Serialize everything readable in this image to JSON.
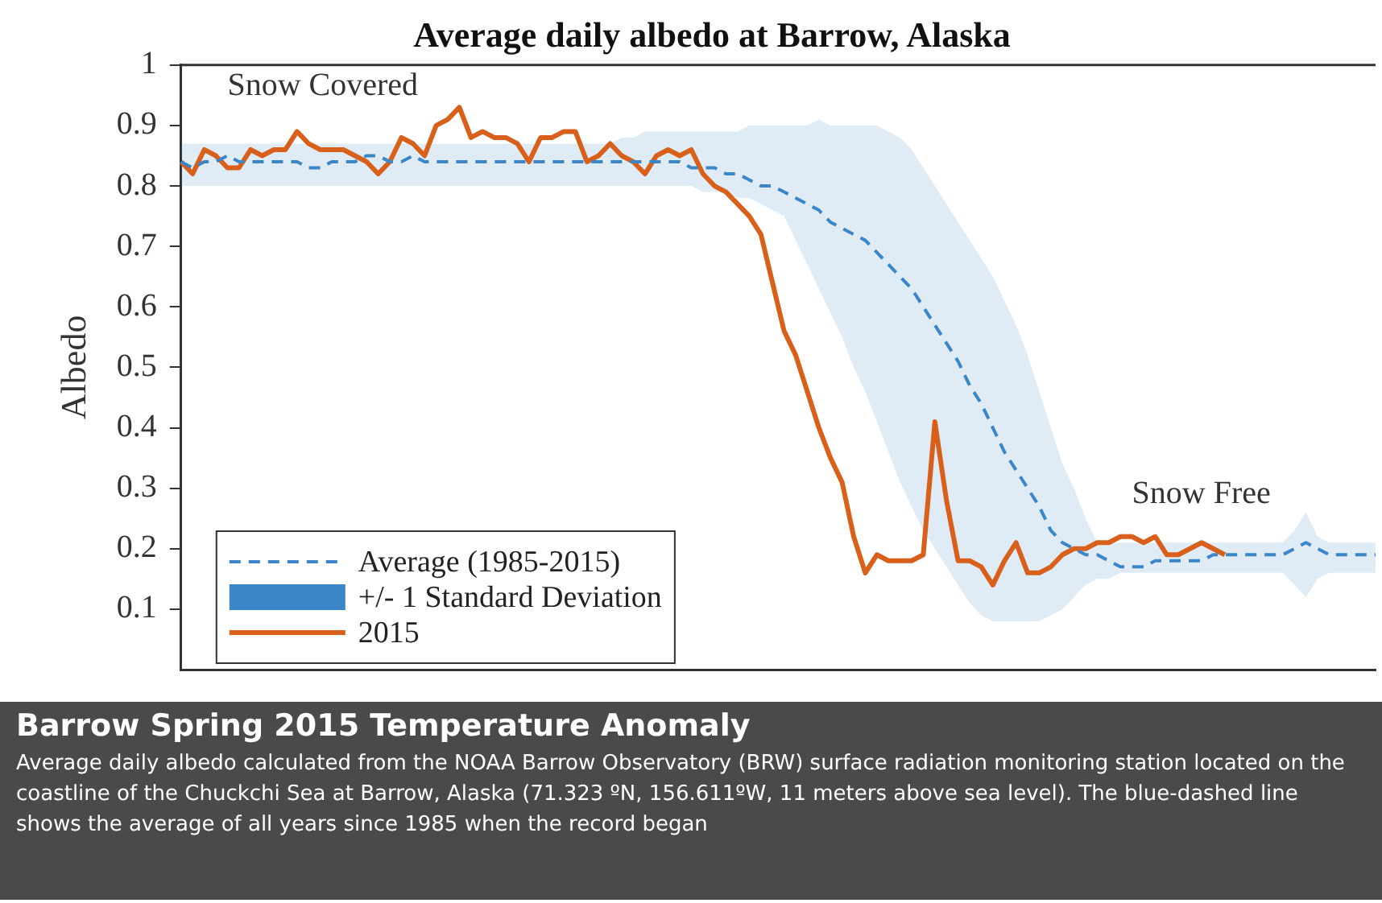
{
  "chart_data": {
    "type": "line",
    "title": "Average daily albedo at Barrow, Alaska",
    "ylabel": "Albedo",
    "categories": [
      null,
      null,
      null,
      null,
      null,
      null,
      null,
      null,
      null,
      null,
      null,
      null,
      null,
      null,
      null,
      null,
      null,
      null,
      null,
      null,
      null,
      null,
      null,
      null,
      null,
      null,
      null,
      null,
      null,
      null,
      null,
      null,
      null,
      null,
      null,
      null,
      null,
      null,
      null,
      null,
      null,
      null,
      null,
      null,
      null,
      null,
      null,
      null,
      null,
      null,
      null,
      null,
      null,
      null,
      null,
      null,
      null,
      null,
      null,
      null,
      null,
      null,
      null,
      null,
      null,
      null,
      null,
      null,
      null,
      null,
      null,
      null,
      null,
      null,
      null,
      null,
      null,
      null,
      null,
      null,
      null,
      null,
      null,
      null,
      null,
      null,
      null,
      null,
      null,
      null,
      null,
      null,
      null,
      null,
      null,
      null,
      null,
      null,
      null,
      null,
      null,
      null,
      null,
      null
    ],
    "series": [
      {
        "name": "Average (1985-2015)",
        "color": "#3a86c8",
        "line_style": "dashed",
        "values": [
          0.84,
          0.83,
          0.84,
          0.84,
          0.85,
          0.84,
          0.84,
          0.84,
          0.84,
          0.84,
          0.84,
          0.83,
          0.83,
          0.84,
          0.84,
          0.84,
          0.85,
          0.85,
          0.84,
          0.84,
          0.85,
          0.84,
          0.84,
          0.84,
          0.84,
          0.84,
          0.84,
          0.84,
          0.84,
          0.84,
          0.84,
          0.84,
          0.84,
          0.84,
          0.84,
          0.84,
          0.84,
          0.84,
          0.84,
          0.84,
          0.84,
          0.84,
          0.84,
          0.84,
          0.83,
          0.83,
          0.83,
          0.82,
          0.82,
          0.81,
          0.8,
          0.8,
          0.79,
          0.78,
          0.77,
          0.76,
          0.74,
          0.73,
          0.72,
          0.71,
          0.69,
          0.67,
          0.65,
          0.63,
          0.6,
          0.57,
          0.54,
          0.51,
          0.47,
          0.44,
          0.4,
          0.36,
          0.33,
          0.3,
          0.27,
          0.23,
          0.21,
          0.2,
          0.19,
          0.19,
          0.18,
          0.17,
          0.17,
          0.17,
          0.18,
          0.18,
          0.18,
          0.18,
          0.18,
          0.19,
          0.19,
          0.19,
          0.19,
          0.19,
          0.19,
          0.19,
          0.2,
          0.21,
          0.2,
          0.19,
          0.19,
          0.19,
          0.19,
          0.19
        ],
        "lower": [
          0.8,
          0.8,
          0.8,
          0.8,
          0.8,
          0.8,
          0.8,
          0.8,
          0.8,
          0.8,
          0.8,
          0.8,
          0.8,
          0.8,
          0.8,
          0.8,
          0.8,
          0.8,
          0.8,
          0.8,
          0.8,
          0.8,
          0.8,
          0.8,
          0.8,
          0.8,
          0.8,
          0.8,
          0.8,
          0.8,
          0.8,
          0.8,
          0.8,
          0.8,
          0.8,
          0.8,
          0.8,
          0.8,
          0.8,
          0.8,
          0.8,
          0.8,
          0.8,
          0.8,
          0.8,
          0.79,
          0.79,
          0.79,
          0.78,
          0.78,
          0.77,
          0.76,
          0.75,
          0.71,
          0.67,
          0.63,
          0.59,
          0.55,
          0.5,
          0.46,
          0.41,
          0.36,
          0.31,
          0.27,
          0.23,
          0.2,
          0.17,
          0.14,
          0.11,
          0.09,
          0.08,
          0.08,
          0.08,
          0.08,
          0.08,
          0.09,
          0.1,
          0.12,
          0.14,
          0.15,
          0.15,
          0.16,
          0.16,
          0.16,
          0.16,
          0.16,
          0.16,
          0.16,
          0.16,
          0.16,
          0.16,
          0.16,
          0.16,
          0.16,
          0.16,
          0.16,
          0.14,
          0.12,
          0.15,
          0.16,
          0.16,
          0.16,
          0.16,
          0.16
        ],
        "upper": [
          0.87,
          0.87,
          0.87,
          0.87,
          0.87,
          0.87,
          0.87,
          0.87,
          0.87,
          0.87,
          0.87,
          0.87,
          0.87,
          0.87,
          0.87,
          0.87,
          0.87,
          0.87,
          0.87,
          0.87,
          0.87,
          0.87,
          0.87,
          0.87,
          0.87,
          0.87,
          0.87,
          0.87,
          0.87,
          0.87,
          0.87,
          0.87,
          0.87,
          0.87,
          0.87,
          0.87,
          0.87,
          0.87,
          0.88,
          0.88,
          0.89,
          0.89,
          0.89,
          0.89,
          0.89,
          0.89,
          0.89,
          0.89,
          0.89,
          0.9,
          0.9,
          0.9,
          0.9,
          0.9,
          0.9,
          0.91,
          0.9,
          0.9,
          0.9,
          0.9,
          0.9,
          0.89,
          0.88,
          0.86,
          0.83,
          0.8,
          0.77,
          0.74,
          0.71,
          0.68,
          0.65,
          0.61,
          0.57,
          0.52,
          0.46,
          0.4,
          0.34,
          0.3,
          0.25,
          0.21,
          0.21,
          0.21,
          0.21,
          0.21,
          0.21,
          0.21,
          0.21,
          0.21,
          0.21,
          0.21,
          0.21,
          0.21,
          0.21,
          0.21,
          0.21,
          0.21,
          0.23,
          0.26,
          0.22,
          0.21,
          0.21,
          0.21,
          0.21,
          0.21
        ]
      },
      {
        "name": "2015",
        "color": "#d9601a",
        "values": [
          0.84,
          0.82,
          0.86,
          0.85,
          0.83,
          0.83,
          0.86,
          0.85,
          0.86,
          0.86,
          0.89,
          0.87,
          0.86,
          0.86,
          0.86,
          0.85,
          0.84,
          0.82,
          0.84,
          0.88,
          0.87,
          0.85,
          0.9,
          0.91,
          0.93,
          0.88,
          0.89,
          0.88,
          0.88,
          0.87,
          0.84,
          0.88,
          0.88,
          0.89,
          0.89,
          0.84,
          0.85,
          0.87,
          0.85,
          0.84,
          0.82,
          0.85,
          0.86,
          0.85,
          0.86,
          0.82,
          0.8,
          0.79,
          0.77,
          0.75,
          0.72,
          0.64,
          0.56,
          0.52,
          0.46,
          0.4,
          0.35,
          0.31,
          0.22,
          0.16,
          0.19,
          0.18,
          0.18,
          0.18,
          0.19,
          0.41,
          0.28,
          0.18,
          0.18,
          0.17,
          0.14,
          0.18,
          0.21,
          0.16,
          0.16,
          0.17,
          0.19,
          0.2,
          0.2,
          0.21,
          0.21,
          0.22,
          0.22,
          0.21,
          0.22,
          0.19,
          0.19,
          0.2,
          0.21,
          0.2,
          0.19,
          null,
          null,
          null,
          null,
          null,
          null,
          null,
          null,
          null,
          null,
          null,
          null,
          null
        ]
      }
    ],
    "ylim": [
      0,
      1
    ],
    "yticks": [
      0.1,
      0.2,
      0.3,
      0.4,
      0.5,
      0.6,
      0.7,
      0.8,
      0.9,
      1
    ],
    "tick_labels": "y",
    "legend": "bottom left",
    "annotations": [
      "Snow Covered",
      "Snow Free",
      "+/- 1 Standard Deviation",
      "Barrow Spring 2015 Temperature Anomaly",
      "Average daily albedo calculated from the NOAA Barrow Observatory (BRW) surface radiation monitoring station located on the coastline of the Chuckchi Sea at Barrow, Alaska (71.323 ºN, 156.611ºW, 11 meters above sea level). The blue-dashed line shows the average of all years since 1985 when the record began"
    ]
  }
}
